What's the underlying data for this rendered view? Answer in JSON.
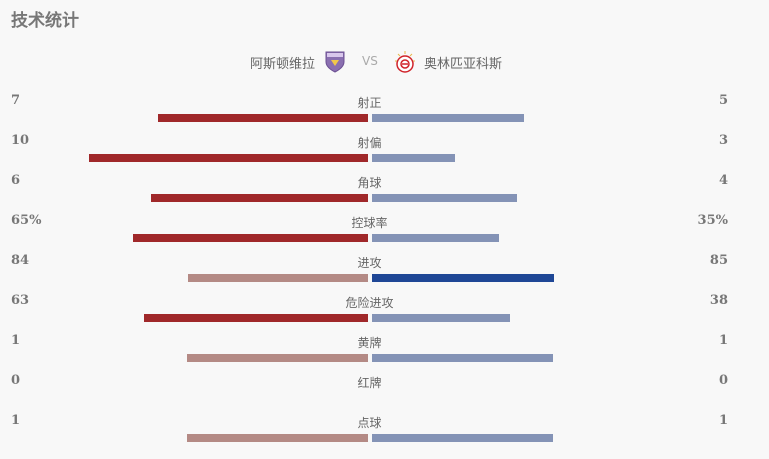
{
  "title": "技术统计",
  "teams": {
    "home": {
      "name": "阿斯顿维拉",
      "badge_icon": "aston-villa-crest"
    },
    "vs": "VS",
    "away": {
      "name": "奥林匹亚科斯",
      "badge_icon": "olympiacos-crest"
    }
  },
  "colors": {
    "home_bar": "#a0282a",
    "away_bar": "#8493b6",
    "home_bar_equal": "#b48a85",
    "away_bar_dominant": "#1f4796"
  },
  "stats": [
    {
      "label": "射正",
      "home": "7",
      "away": "5",
      "home_fraction": 0.58,
      "away_fraction": 0.42
    },
    {
      "label": "射偏",
      "home": "10",
      "away": "3",
      "home_fraction": 0.77,
      "away_fraction": 0.23
    },
    {
      "label": "角球",
      "home": "6",
      "away": "4",
      "home_fraction": 0.6,
      "away_fraction": 0.4
    },
    {
      "label": "控球率",
      "home": "65%",
      "away": "35%",
      "home_fraction": 0.65,
      "away_fraction": 0.35
    },
    {
      "label": "进攻",
      "home": "84",
      "away": "85",
      "home_fraction": 0.497,
      "away_fraction": 0.503
    },
    {
      "label": "危险进攻",
      "home": "63",
      "away": "38",
      "home_fraction": 0.62,
      "away_fraction": 0.38
    },
    {
      "label": "黄牌",
      "home": "1",
      "away": "1",
      "home_fraction": 0.5,
      "away_fraction": 0.5
    },
    {
      "label": "红牌",
      "home": "0",
      "away": "0",
      "home_fraction": 0,
      "away_fraction": 0
    },
    {
      "label": "点球",
      "home": "1",
      "away": "1",
      "home_fraction": 0.5,
      "away_fraction": 0.5
    }
  ]
}
